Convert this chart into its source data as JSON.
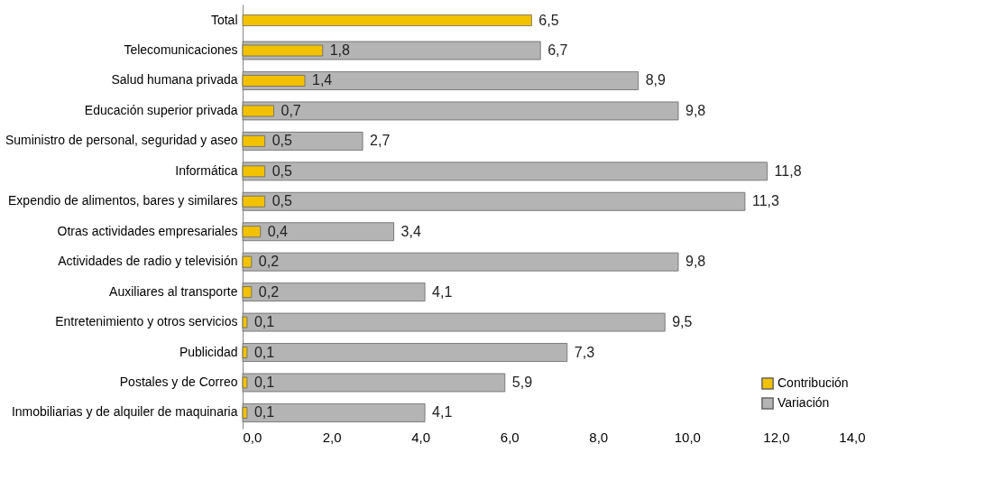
{
  "chart_data": {
    "type": "bar",
    "orientation": "horizontal",
    "categories": [
      "Total",
      "Telecomunicaciones",
      "Salud humana privada",
      "Educación superior privada",
      "Suministro de personal, seguridad y aseo",
      "Informática",
      "Expendio de alimentos, bares y similares",
      "Otras actividades empresariales",
      "Actividades de radio y televisión",
      "Auxiliares al transporte",
      "Entretenimiento y otros servicios",
      "Publicidad",
      "Postales y de Correo",
      "Inmobiliarias y de alquiler de maquinaria"
    ],
    "series": [
      {
        "name": "Variación",
        "color": "#b4b4b4",
        "values": [
          null,
          6.7,
          8.9,
          9.8,
          2.7,
          11.8,
          11.3,
          3.4,
          9.8,
          4.1,
          9.5,
          7.3,
          5.9,
          4.1
        ],
        "value_labels": [
          null,
          "6,7",
          "8,9",
          "9,8",
          "2,7",
          "11,8",
          "11,3",
          "3,4",
          "9,8",
          "4,1",
          "9,5",
          "7,3",
          "5,9",
          "4,1"
        ]
      },
      {
        "name": "Contribución",
        "color": "#f2c200",
        "values": [
          6.5,
          1.8,
          1.4,
          0.7,
          0.5,
          0.5,
          0.5,
          0.4,
          0.2,
          0.2,
          0.1,
          0.1,
          0.1,
          0.1
        ],
        "value_labels": [
          "6,5",
          "1,8",
          "1,4",
          "0,7",
          "0,5",
          "0,5",
          "0,5",
          "0,4",
          "0,2",
          "0,2",
          "0,1",
          "0,1",
          "0,1",
          "0,1"
        ]
      }
    ],
    "xlim": [
      0,
      14
    ],
    "xticks": [
      {
        "value": 0,
        "label": "0,0"
      },
      {
        "value": 2,
        "label": "2,0"
      },
      {
        "value": 4,
        "label": "4,0"
      },
      {
        "value": 6,
        "label": "6,0"
      },
      {
        "value": 8,
        "label": "8,0"
      },
      {
        "value": 10,
        "label": "10,0"
      },
      {
        "value": 12,
        "label": "12,0"
      },
      {
        "value": 14,
        "label": "14,0"
      }
    ],
    "grid": false,
    "legend": "bottom right"
  }
}
